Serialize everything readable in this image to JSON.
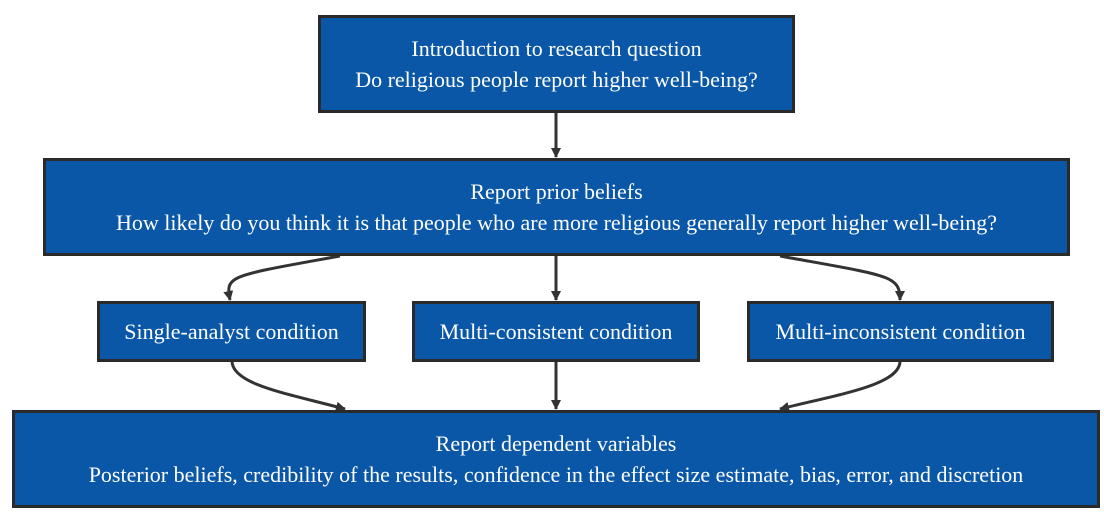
{
  "nodes": {
    "intro": {
      "title": "Introduction to research question",
      "subtitle": "Do religious people report higher well-being?"
    },
    "prior": {
      "title": "Report prior beliefs",
      "subtitle": "How likely do you think it is that people who are more religious generally report higher well-being?"
    },
    "single": {
      "label": "Single-analyst condition"
    },
    "consistent": {
      "label": "Multi-consistent condition"
    },
    "inconsistent": {
      "label": "Multi-inconsistent condition"
    },
    "dependent": {
      "title": "Report dependent variables",
      "subtitle": "Posterior beliefs, credibility of the results, confidence in the effect size estimate, bias, error, and discretion"
    }
  },
  "colors": {
    "node_fill": "#0a57a8",
    "node_border": "#2a2a2a",
    "node_text": "#ffffff",
    "edge": "#333333"
  }
}
